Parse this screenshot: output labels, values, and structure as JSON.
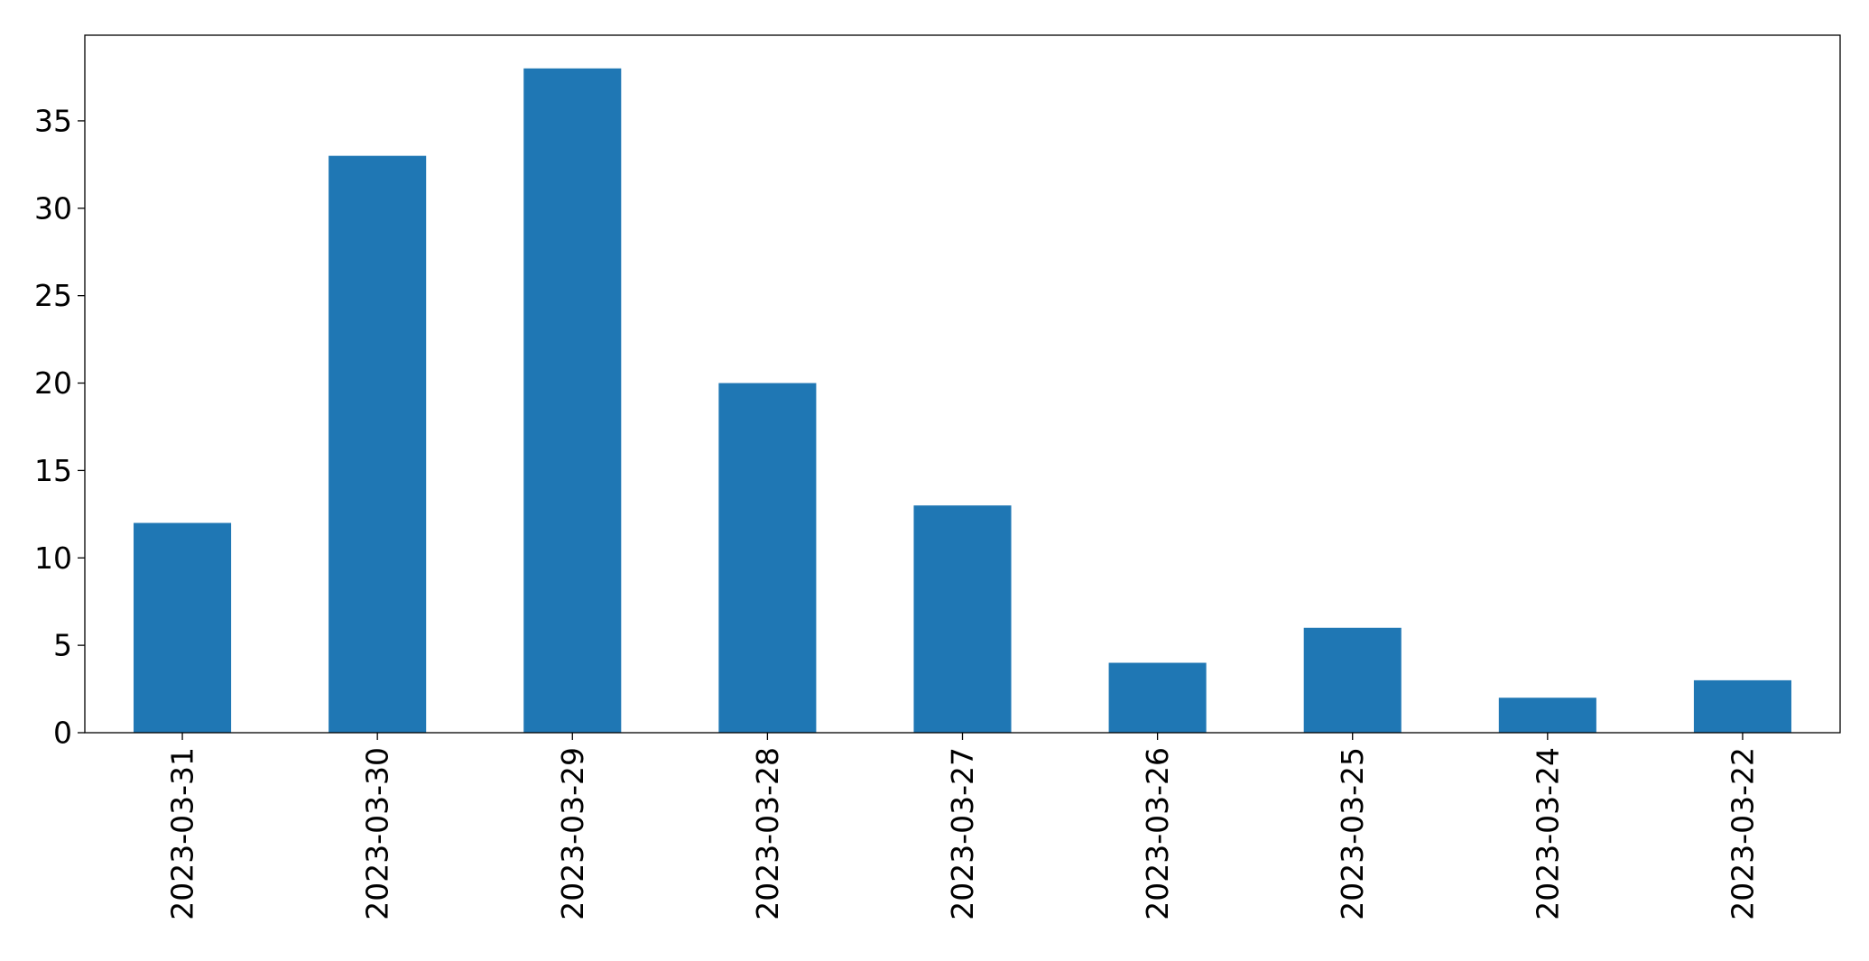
{
  "chart_data": {
    "type": "bar",
    "title": "",
    "xlabel": "",
    "ylabel": "",
    "categories": [
      "2023-03-31",
      "2023-03-30",
      "2023-03-29",
      "2023-03-28",
      "2023-03-27",
      "2023-03-26",
      "2023-03-25",
      "2023-03-24",
      "2023-03-22"
    ],
    "values": [
      12,
      33,
      38,
      20,
      13,
      4,
      6,
      2,
      3
    ],
    "ylim": [
      0,
      39.9
    ],
    "yticks": [
      0,
      5,
      10,
      15,
      20,
      25,
      30,
      35
    ],
    "ytick_labels": [
      "0",
      "5",
      "10",
      "15",
      "20",
      "25",
      "30",
      "35"
    ],
    "bar_color": "#1f77b4",
    "grid": false,
    "legend": "none"
  }
}
